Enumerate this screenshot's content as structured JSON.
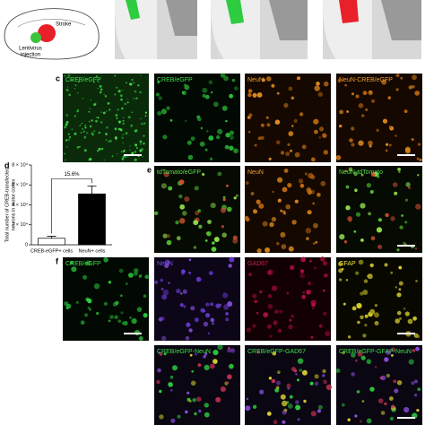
{
  "schematic": {
    "stroke_label": "Stroke",
    "injection_label_lines": [
      "Lentivirus",
      "injection"
    ]
  },
  "panels": {
    "c": {
      "letter": "c",
      "captions": [
        "CREB/eGFP",
        "CREB/eGFP",
        "NeuN",
        "NeuN-CREB/eGFP"
      ]
    },
    "e": {
      "letter": "e",
      "captions": [
        "tdTomato/eGFP",
        "NeuN",
        "NeuN-tdTomato"
      ]
    },
    "f": {
      "letter": "f",
      "captions": [
        "CREB/eGFP",
        "NeuN",
        "GAD67",
        "GFAP"
      ],
      "merged_captions": [
        "CREB/eGFP-NeuN",
        "CREB/eGFP-GAD67",
        "CREB/eGFP-GFAP-NeuN"
      ]
    }
  },
  "chart_data": {
    "type": "bar",
    "panel_label": "d",
    "ylabel_lines": [
      "Total number of CREB-transfected",
      "neurons in motor cortex"
    ],
    "categories": [
      "CREB-eGFP+ cells",
      "NeuN+ cells"
    ],
    "values": [
      6500,
      51000
    ],
    "errors": [
      2000,
      8000
    ],
    "colors": [
      "#ffffff",
      "#000000"
    ],
    "ylim": [
      0,
      80000
    ],
    "yticks": [
      0,
      {
        "value": 20000,
        "label": "2 × 10⁴"
      },
      {
        "value": 40000,
        "label": "4 × 10⁴"
      },
      {
        "value": 60000,
        "label": "6 × 10⁴"
      },
      {
        "value": 80000,
        "label": "8 × 10⁴"
      }
    ],
    "annotation": "15.6%"
  }
}
